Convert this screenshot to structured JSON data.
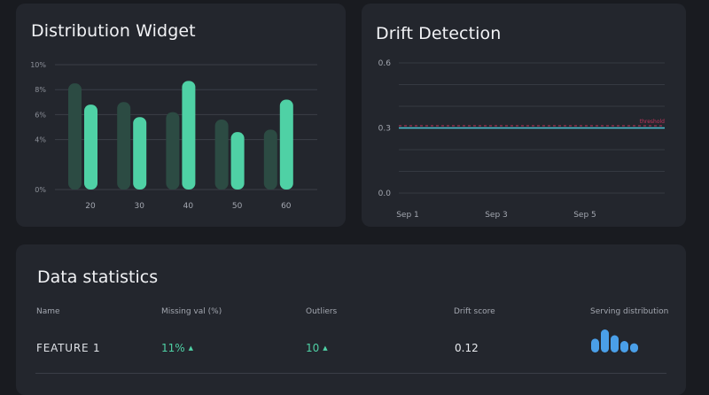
{
  "distribution_widget": {
    "title": "Distribution Widget",
    "chart_data": {
      "type": "bar",
      "categories": [
        "20",
        "30",
        "40",
        "50",
        "60"
      ],
      "series": [
        {
          "values": [
            8.5,
            7.0,
            6.2,
            5.6,
            4.8
          ]
        },
        {
          "values": [
            6.8,
            5.8,
            8.7,
            4.6,
            7.2
          ]
        }
      ],
      "y_ticks": [
        "0%",
        "4%",
        "6%",
        "8%",
        "10%"
      ],
      "y_tick_values": [
        0,
        4,
        6,
        8,
        10
      ],
      "ylim": [
        0,
        10
      ],
      "colors": {
        "background": "#2c4b43",
        "foreground": "#4fd1a5"
      },
      "grid": true
    }
  },
  "drift_detection": {
    "title": "Drift Detection",
    "chart_data": {
      "type": "line",
      "x_ticks": [
        "Sep 1",
        "Sep 3",
        "Sep 5"
      ],
      "x_tick_values": [
        1,
        3,
        5
      ],
      "xlim": [
        1,
        7
      ],
      "y_ticks": [
        "0.0",
        "0.3",
        "0.6"
      ],
      "y_tick_values": [
        0,
        0.3,
        0.6
      ],
      "ylim": [
        0,
        0.6
      ],
      "threshold": {
        "label": "threshold",
        "value": 0.31,
        "color": "#c2345c"
      },
      "series": [
        {
          "x": [
            1,
            7
          ],
          "y": [
            0.3,
            0.3
          ],
          "color": "#4fc3d6"
        }
      ],
      "grid": true
    }
  },
  "data_statistics": {
    "title": "Data statistics",
    "columns": [
      "Name",
      "Missing val (%)",
      "Outliers",
      "Drift score",
      "Serving distribution"
    ],
    "rows": [
      {
        "name": "FEATURE 1",
        "missing": "11%",
        "outliers": "10",
        "drift_score": "0.12",
        "serving_distribution": [
          0.6,
          1.0,
          0.75,
          0.5,
          0.4
        ],
        "serving_color": "#4a9fe8"
      }
    ]
  }
}
